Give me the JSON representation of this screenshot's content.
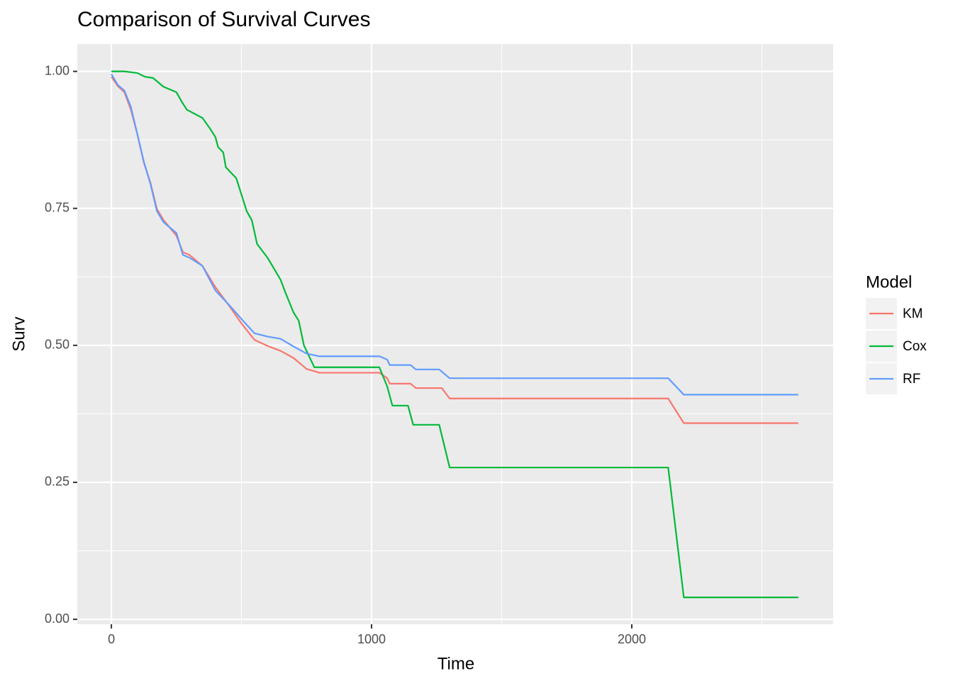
{
  "chart_data": {
    "type": "line",
    "title": "Comparison of Survival Curves",
    "x_label": "Time",
    "y_label": "Surv",
    "xlim": [
      -131,
      2774
    ],
    "ylim": [
      -0.009,
      1.05
    ],
    "xticks": [
      0,
      1000,
      2000
    ],
    "yticks": [
      {
        "value": 0,
        "label": "0.00"
      },
      {
        "value": 0.25,
        "label": "0.25"
      },
      {
        "value": 0.5,
        "label": "0.50"
      },
      {
        "value": 0.75,
        "label": "0.75"
      },
      {
        "value": 1,
        "label": "1.00"
      }
    ],
    "x_minor_grid": [
      500,
      1500,
      2500
    ],
    "y_minor_grid": [
      0.125,
      0.375,
      0.625,
      0.875
    ],
    "grid": true,
    "legend_title": "Model",
    "legend_position": "right",
    "series": [
      {
        "name": "KM",
        "color": "#f8766d",
        "x": [
          0,
          25,
          50,
          75,
          100,
          125,
          150,
          175,
          200,
          250,
          275,
          300,
          350,
          400,
          450,
          500,
          550,
          600,
          650,
          700,
          750,
          800,
          1030,
          1060,
          1070,
          1150,
          1170,
          1270,
          1300,
          2140,
          2200,
          2640
        ],
        "values": [
          0.99,
          0.973,
          0.962,
          0.93,
          0.885,
          0.833,
          0.797,
          0.749,
          0.729,
          0.7,
          0.67,
          0.665,
          0.645,
          0.606,
          0.574,
          0.54,
          0.51,
          0.499,
          0.49,
          0.477,
          0.457,
          0.45,
          0.45,
          0.44,
          0.43,
          0.43,
          0.422,
          0.422,
          0.403,
          0.403,
          0.358,
          0.358
        ]
      },
      {
        "name": "Cox",
        "color": "#00ba38",
        "x": [
          0,
          50,
          100,
          130,
          160,
          200,
          250,
          270,
          290,
          350,
          380,
          400,
          410,
          430,
          440,
          480,
          500,
          520,
          540,
          560,
          600,
          650,
          670,
          700,
          720,
          740,
          780,
          1030,
          1060,
          1080,
          1140,
          1160,
          1260,
          1300,
          2140,
          2200,
          2640
        ],
        "values": [
          1.0,
          1.0,
          0.997,
          0.99,
          0.988,
          0.972,
          0.962,
          0.945,
          0.93,
          0.915,
          0.895,
          0.88,
          0.862,
          0.852,
          0.825,
          0.805,
          0.775,
          0.745,
          0.728,
          0.685,
          0.66,
          0.62,
          0.595,
          0.56,
          0.545,
          0.5,
          0.46,
          0.46,
          0.425,
          0.39,
          0.39,
          0.355,
          0.355,
          0.277,
          0.277,
          0.04,
          0.04
        ]
      },
      {
        "name": "RF",
        "color": "#619cff",
        "x": [
          0,
          25,
          50,
          75,
          100,
          125,
          150,
          175,
          200,
          250,
          275,
          300,
          350,
          400,
          450,
          500,
          550,
          600,
          650,
          700,
          750,
          800,
          1030,
          1060,
          1070,
          1150,
          1170,
          1260,
          1300,
          2140,
          2200,
          2640
        ],
        "values": [
          0.995,
          0.975,
          0.965,
          0.935,
          0.885,
          0.835,
          0.795,
          0.745,
          0.725,
          0.705,
          0.665,
          0.66,
          0.645,
          0.6,
          0.575,
          0.548,
          0.522,
          0.516,
          0.512,
          0.498,
          0.485,
          0.48,
          0.48,
          0.474,
          0.464,
          0.464,
          0.456,
          0.456,
          0.44,
          0.44,
          0.41,
          0.41
        ]
      }
    ]
  }
}
